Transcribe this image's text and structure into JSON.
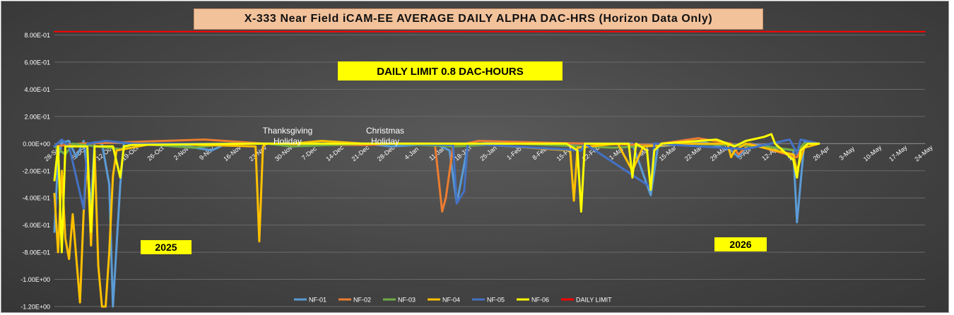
{
  "chart_data": {
    "type": "line",
    "title": "X-333 Near Field iCAM-EE AVERAGE DAILY ALPHA DAC-HRS (Horizon Data Only)",
    "xlabel": "",
    "ylabel": "",
    "x_start": "2025-09-28",
    "x_end": "2026-05-24",
    "x_ticks": [
      "28-Sep",
      "5-Oct",
      "12-Oct",
      "19-Oct",
      "26-Oct",
      "2-Nov",
      "9-Nov",
      "16-Nov",
      "23-Nov",
      "30-Nov",
      "7-Dec",
      "14-Dec",
      "21-Dec",
      "28-Dec",
      "4-Jan",
      "11-Jan",
      "18-Jan",
      "25-Jan",
      "1-Feb",
      "8-Feb",
      "15-Feb",
      "22-Feb",
      "1-Mar",
      "8-Mar",
      "15-Mar",
      "22-Mar",
      "29-Mar",
      "5-Apr",
      "12-Apr",
      "19-Apr",
      "26-Apr",
      "3-May",
      "10-May",
      "17-May",
      "24-May"
    ],
    "y_ticks": [
      "8.00E-01",
      "6.00E-01",
      "4.00E-01",
      "2.00E-01",
      "0.00E+00",
      "-2.00E-01",
      "-4.00E-01",
      "-6.00E-01",
      "-8.00E-01",
      "-1.00E+00",
      "-1.20E+00"
    ],
    "ylim": [
      -1.2,
      0.85
    ],
    "grid": true,
    "legend_position": "bottom",
    "series": [
      {
        "name": "NF-01",
        "color": "#5b9bd5",
        "points": [
          [
            "2025-09-28",
            -0.65
          ],
          [
            "2025-09-29",
            -0.1
          ],
          [
            "2025-09-30",
            0.01
          ],
          [
            "2025-10-02",
            0.02
          ],
          [
            "2025-10-04",
            -0.1
          ],
          [
            "2025-10-06",
            0.02
          ],
          [
            "2025-10-08",
            -0.45
          ],
          [
            "2025-10-09",
            0.01
          ],
          [
            "2025-10-11",
            0.0
          ],
          [
            "2025-10-13",
            -0.3
          ],
          [
            "2025-10-14",
            -1.2
          ],
          [
            "2025-10-16",
            -0.3
          ],
          [
            "2025-10-17",
            0.01
          ],
          [
            "2025-10-20",
            -0.01
          ],
          [
            "2025-10-30",
            0.0
          ],
          [
            "2025-11-10",
            -0.05
          ],
          [
            "2025-11-14",
            0.0
          ],
          [
            "2025-11-25",
            0.0
          ],
          [
            "2025-12-02",
            0.0
          ],
          [
            "2025-12-22",
            0.0
          ],
          [
            "2025-12-29",
            -0.02
          ],
          [
            "2026-01-05",
            -0.01
          ],
          [
            "2026-01-10",
            0.0
          ],
          [
            "2026-01-14",
            -0.05
          ],
          [
            "2026-01-16",
            -0.44
          ],
          [
            "2026-01-19",
            -0.02
          ],
          [
            "2026-01-25",
            0.01
          ],
          [
            "2026-02-10",
            0.0
          ],
          [
            "2026-02-20",
            0.0
          ],
          [
            "2026-03-05",
            0.0
          ],
          [
            "2026-03-10",
            -0.38
          ],
          [
            "2026-03-12",
            -0.02
          ],
          [
            "2026-03-25",
            0.01
          ],
          [
            "2026-04-01",
            -0.05
          ],
          [
            "2026-04-03",
            -0.1
          ],
          [
            "2026-04-06",
            0.0
          ],
          [
            "2026-04-18",
            -0.05
          ],
          [
            "2026-04-19",
            -0.58
          ],
          [
            "2026-04-21",
            0.01
          ],
          [
            "2026-04-25",
            0.0
          ]
        ]
      },
      {
        "name": "NF-02",
        "color": "#ed7d31",
        "points": [
          [
            "2025-09-28",
            -0.02
          ],
          [
            "2025-10-05",
            0.0
          ],
          [
            "2025-11-08",
            0.03
          ],
          [
            "2025-11-25",
            0.0
          ],
          [
            "2025-12-02",
            -0.01
          ],
          [
            "2025-12-22",
            -0.01
          ],
          [
            "2025-12-29",
            0.0
          ],
          [
            "2026-01-10",
            0.0
          ],
          [
            "2026-01-12",
            -0.5
          ],
          [
            "2026-01-13",
            -0.4
          ],
          [
            "2026-01-15",
            -0.02
          ],
          [
            "2026-01-22",
            0.02
          ],
          [
            "2026-02-05",
            0.01
          ],
          [
            "2026-02-20",
            0.0
          ],
          [
            "2026-03-10",
            -0.01
          ],
          [
            "2026-03-23",
            0.04
          ],
          [
            "2026-04-01",
            0.0
          ],
          [
            "2026-04-03",
            -0.08
          ],
          [
            "2026-04-06",
            0.0
          ],
          [
            "2026-04-19",
            -0.1
          ],
          [
            "2026-04-21",
            0.0
          ],
          [
            "2026-04-25",
            0.0
          ]
        ]
      },
      {
        "name": "NF-03",
        "color": "#70ad47",
        "points": [
          [
            "2025-09-28",
            -0.02
          ],
          [
            "2025-10-01",
            -0.08
          ],
          [
            "2025-10-03",
            0.0
          ],
          [
            "2025-10-16",
            -0.04
          ],
          [
            "2025-10-20",
            0.0
          ],
          [
            "2025-11-05",
            -0.03
          ],
          [
            "2025-11-15",
            0.0
          ],
          [
            "2025-11-25",
            0.0
          ],
          [
            "2025-12-02",
            -0.02
          ],
          [
            "2025-12-22",
            0.0
          ],
          [
            "2025-12-29",
            0.0
          ],
          [
            "2026-01-15",
            -0.02
          ],
          [
            "2026-02-01",
            0.0
          ],
          [
            "2026-02-28",
            -0.03
          ],
          [
            "2026-03-20",
            0.0
          ],
          [
            "2026-04-10",
            -0.02
          ],
          [
            "2026-04-19",
            -0.05
          ],
          [
            "2026-04-21",
            0.0
          ],
          [
            "2026-04-25",
            0.0
          ]
        ]
      },
      {
        "name": "NF-04",
        "color": "#ffc000",
        "points": [
          [
            "2025-09-28",
            -0.37
          ],
          [
            "2025-09-29",
            -0.8
          ],
          [
            "2025-09-30",
            -0.2
          ],
          [
            "2025-10-01",
            -0.7
          ],
          [
            "2025-10-02",
            -0.85
          ],
          [
            "2025-10-03",
            -0.52
          ],
          [
            "2025-10-04",
            -0.85
          ],
          [
            "2025-10-05",
            -1.17
          ],
          [
            "2025-10-06",
            -0.5
          ],
          [
            "2025-10-07",
            -0.1
          ],
          [
            "2025-10-08",
            -0.75
          ],
          [
            "2025-10-09",
            -0.05
          ],
          [
            "2025-10-10",
            -0.9
          ],
          [
            "2025-10-11",
            -1.2
          ],
          [
            "2025-10-12",
            -1.2
          ],
          [
            "2025-10-13",
            -0.8
          ],
          [
            "2025-10-14",
            -0.24
          ],
          [
            "2025-10-15",
            -0.05
          ],
          [
            "2025-10-17",
            -0.04
          ],
          [
            "2025-10-25",
            0.0
          ],
          [
            "2025-11-22",
            -0.02
          ],
          [
            "2025-11-23",
            -0.72
          ],
          [
            "2025-11-24",
            -0.02
          ],
          [
            "2025-11-25",
            0.0
          ],
          [
            "2025-12-02",
            0.0
          ],
          [
            "2025-12-10",
            0.02
          ],
          [
            "2025-12-22",
            0.0
          ],
          [
            "2025-12-29",
            0.0
          ],
          [
            "2026-01-20",
            0.0
          ],
          [
            "2026-02-16",
            -0.05
          ],
          [
            "2026-02-17",
            -0.42
          ],
          [
            "2026-02-18",
            -0.03
          ],
          [
            "2026-03-01",
            0.0
          ],
          [
            "2026-03-05",
            -0.2
          ],
          [
            "2026-03-08",
            -0.02
          ],
          [
            "2026-03-22",
            0.0
          ],
          [
            "2026-03-31",
            0.0
          ],
          [
            "2026-04-01",
            -0.1
          ],
          [
            "2026-04-02",
            -0.05
          ],
          [
            "2026-04-05",
            0.0
          ],
          [
            "2026-04-18",
            -0.08
          ],
          [
            "2026-04-19",
            -0.2
          ],
          [
            "2026-04-21",
            -0.03
          ],
          [
            "2026-04-25",
            0.0
          ]
        ]
      },
      {
        "name": "NF-05",
        "color": "#4472c4",
        "points": [
          [
            "2025-09-28",
            -0.02
          ],
          [
            "2025-09-30",
            0.03
          ],
          [
            "2025-10-02",
            -0.02
          ],
          [
            "2025-10-06",
            -0.48
          ],
          [
            "2025-10-07",
            0.0
          ],
          [
            "2025-10-12",
            0.02
          ],
          [
            "2025-10-20",
            0.0
          ],
          [
            "2025-11-20",
            0.0
          ],
          [
            "2025-11-25",
            0.0
          ],
          [
            "2025-12-02",
            0.0
          ],
          [
            "2025-12-22",
            0.0
          ],
          [
            "2025-12-29",
            0.0
          ],
          [
            "2026-01-15",
            -0.01
          ],
          [
            "2026-01-16",
            -0.44
          ],
          [
            "2026-01-18",
            -0.35
          ],
          [
            "2026-01-19",
            0.0
          ],
          [
            "2026-02-19",
            -0.05
          ],
          [
            "2026-02-20",
            0.0
          ],
          [
            "2026-03-10",
            -0.32
          ],
          [
            "2026-03-11",
            0.0
          ],
          [
            "2026-04-05",
            -0.04
          ],
          [
            "2026-04-17",
            0.03
          ],
          [
            "2026-04-19",
            -0.07
          ],
          [
            "2026-04-20",
            0.03
          ],
          [
            "2026-04-25",
            0.0
          ]
        ]
      },
      {
        "name": "NF-06",
        "color": "#ffff00",
        "points": [
          [
            "2025-09-28",
            -0.27
          ],
          [
            "2025-09-29",
            -0.02
          ],
          [
            "2025-09-30",
            -0.8
          ],
          [
            "2025-10-01",
            -0.02
          ],
          [
            "2025-10-04",
            -0.02
          ],
          [
            "2025-10-07",
            -0.02
          ],
          [
            "2025-10-08",
            -0.65
          ],
          [
            "2025-10-09",
            -0.02
          ],
          [
            "2025-10-14",
            -0.02
          ],
          [
            "2025-10-16",
            -0.25
          ],
          [
            "2025-10-17",
            -0.02
          ],
          [
            "2025-10-19",
            -0.01
          ],
          [
            "2025-11-20",
            0.0
          ],
          [
            "2025-11-25",
            0.0
          ],
          [
            "2025-12-02",
            0.0
          ],
          [
            "2025-12-22",
            0.0
          ],
          [
            "2025-12-29",
            0.0
          ],
          [
            "2026-02-15",
            0.0
          ],
          [
            "2026-02-18",
            -0.05
          ],
          [
            "2026-02-19",
            -0.5
          ],
          [
            "2026-02-20",
            0.0
          ],
          [
            "2026-03-04",
            0.0
          ],
          [
            "2026-03-05",
            -0.25
          ],
          [
            "2026-03-06",
            0.0
          ],
          [
            "2026-03-09",
            -0.05
          ],
          [
            "2026-03-10",
            -0.34
          ],
          [
            "2026-03-11",
            -0.05
          ],
          [
            "2026-03-13",
            0.0
          ],
          [
            "2026-03-28",
            0.03
          ],
          [
            "2026-04-02",
            -0.02
          ],
          [
            "2026-04-05",
            0.02
          ],
          [
            "2026-04-10",
            0.05
          ],
          [
            "2026-04-12",
            0.07
          ],
          [
            "2026-04-13",
            0.0
          ],
          [
            "2026-04-18",
            -0.12
          ],
          [
            "2026-04-19",
            -0.25
          ],
          [
            "2026-04-20",
            -0.05
          ],
          [
            "2026-04-22",
            0.0
          ],
          [
            "2026-04-25",
            0.0
          ]
        ]
      },
      {
        "name": "DAILY LIMIT",
        "color": "#ff0000",
        "points": [
          [
            "2025-09-28",
            0.825
          ],
          [
            "2026-05-24",
            0.825
          ]
        ]
      }
    ],
    "annotations": [
      {
        "text": "DAILY LIMIT 0.8 DAC-HOURS",
        "type": "box",
        "bg": "#ffff00"
      },
      {
        "text": "2025",
        "type": "box",
        "bg": "#ffff00"
      },
      {
        "text": "2026",
        "type": "box",
        "bg": "#ffff00"
      },
      {
        "text": "Thanksgiving",
        "type": "text",
        "line2": "Holiday"
      },
      {
        "text": "Christmas",
        "type": "text",
        "line2": "Holiday"
      }
    ]
  },
  "colors": {
    "plot_bg": "#474747",
    "gridline": "#6a6a6a",
    "title_bg": "#f2c29b",
    "text": "#ffffff"
  }
}
